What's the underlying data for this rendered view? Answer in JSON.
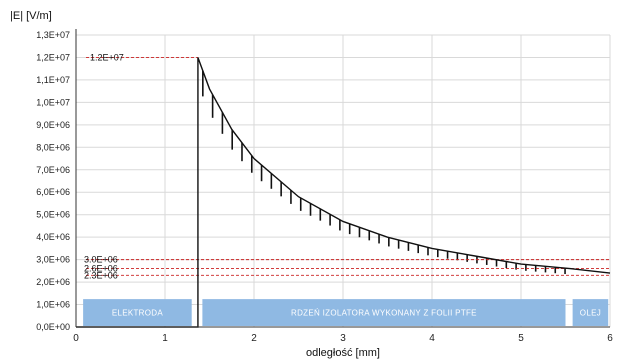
{
  "chart_data": {
    "type": "line",
    "ylabel": "|E| [V/m]",
    "xlabel": "odległość [mm]",
    "xlim": [
      0,
      6
    ],
    "ylim": [
      0,
      13000000
    ],
    "x_ticks": [
      {
        "value": 0,
        "label": "0"
      },
      {
        "value": 1,
        "label": "1"
      },
      {
        "value": 2,
        "label": "2"
      },
      {
        "value": 3,
        "label": "3"
      },
      {
        "value": 4,
        "label": "4"
      },
      {
        "value": 5,
        "label": "5"
      },
      {
        "value": 6,
        "label": "6"
      }
    ],
    "y_ticks": [
      {
        "value": 0,
        "label": "0,0E+00"
      },
      {
        "value": 1000000,
        "label": "1,0E+06"
      },
      {
        "value": 2000000,
        "label": "2,0E+06"
      },
      {
        "value": 3000000,
        "label": "3,0E+06"
      },
      {
        "value": 4000000,
        "label": "4,0E+06"
      },
      {
        "value": 5000000,
        "label": "5,0E+06"
      },
      {
        "value": 6000000,
        "label": "6,0E+06"
      },
      {
        "value": 7000000,
        "label": "7,0E+06"
      },
      {
        "value": 8000000,
        "label": "8,0E+06"
      },
      {
        "value": 9000000,
        "label": "9,0E+06"
      },
      {
        "value": 10000000,
        "label": "1,0E+07"
      },
      {
        "value": 11000000,
        "label": "1,1E+07"
      },
      {
        "value": 12000000,
        "label": "1,2E+07"
      },
      {
        "value": 13000000,
        "label": "1,3E+07"
      }
    ],
    "grid": true,
    "series": [
      {
        "color": "#111111",
        "points": [
          [
            0,
            0
          ],
          [
            1.37,
            0
          ],
          [
            1.37,
            12000000
          ],
          [
            1.5,
            10600000
          ],
          [
            1.75,
            8800000
          ],
          [
            2.0,
            7500000
          ],
          [
            2.5,
            5800000
          ],
          [
            3.0,
            4700000
          ],
          [
            3.5,
            4000000
          ],
          [
            4.0,
            3500000
          ],
          [
            4.5,
            3150000
          ],
          [
            5.0,
            2800000
          ],
          [
            5.55,
            2600000
          ],
          [
            6.0,
            2400000
          ]
        ]
      }
    ],
    "hatch": {
      "x_start": 1.37,
      "x_end": 5.55,
      "count": 38,
      "fraction_of_value": 0.1
    },
    "annotations": [
      {
        "label": "1.2E+07",
        "value": 12000000
      },
      {
        "label": "3.0E+06",
        "value": 3000000
      },
      {
        "label": "2.6E+06",
        "value": 2600000
      },
      {
        "label": "2.3E+06",
        "value": 2300000
      }
    ],
    "annotation_color": "#cc2222",
    "regions": [
      {
        "label": "ELEKTRODA",
        "x_start": 0.08,
        "x_end": 1.3
      },
      {
        "label": "RDZEŃ IZOLATORA WYKONANY Z FOLII PTFE",
        "x_start": 1.42,
        "x_end": 5.5
      },
      {
        "label": "OLEJ",
        "x_start": 5.58,
        "x_end": 5.98
      }
    ],
    "region_color": "#8fb9e3",
    "grid_color": "#d9d9d9"
  }
}
